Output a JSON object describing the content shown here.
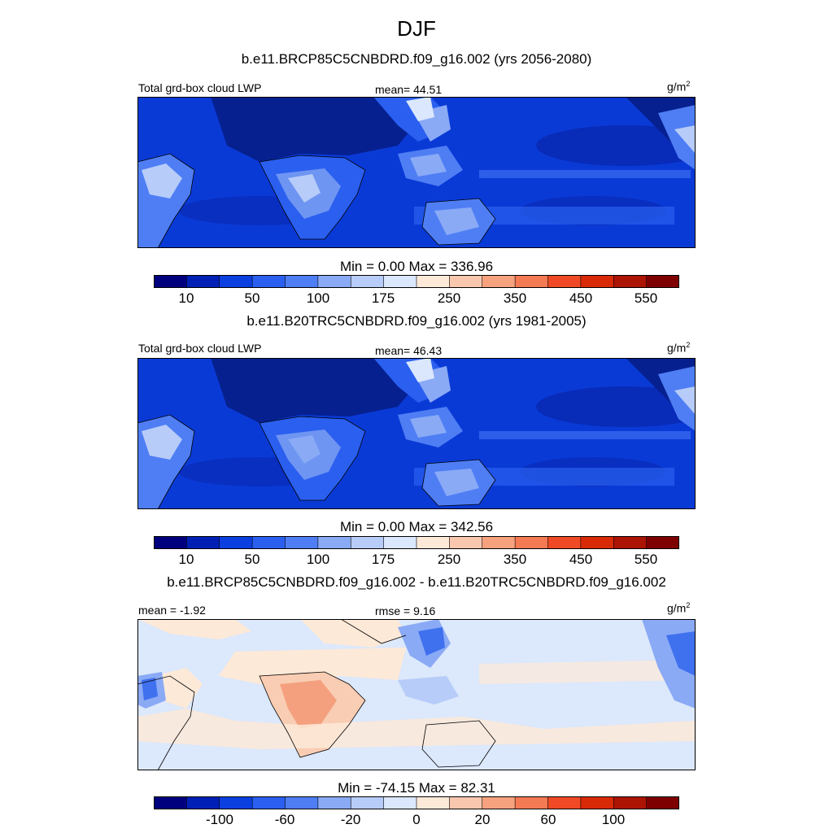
{
  "figure": {
    "title": "DJF",
    "panels": [
      {
        "run_title": "b.e11.BRCP85C5CNBDRD.f09_g16.002 (yrs 2056-2080)",
        "left_label": "Total grd-box cloud LWP",
        "center_label": "mean=  44.51",
        "units_base": "g/m",
        "units_exp": "2",
        "colorbar_title": "Min =   0.00 Max = 336.96",
        "colorbar_ticks": [
          "10",
          "50",
          "100",
          "175",
          "250",
          "350",
          "450",
          "550"
        ]
      },
      {
        "run_title": "b.e11.B20TRC5CNBDRD.f09_g16.002 (yrs 1981-2005)",
        "left_label": "Total grd-box cloud LWP",
        "center_label": "mean=  46.43",
        "units_base": "g/m",
        "units_exp": "2",
        "colorbar_title": "Min =   0.00 Max = 342.56",
        "colorbar_ticks": [
          "10",
          "50",
          "100",
          "175",
          "250",
          "350",
          "450",
          "550"
        ]
      },
      {
        "run_title": "b.e11.BRCP85C5CNBDRD.f09_g16.002 - b.e11.B20TRC5CNBDRD.f09_g16.002",
        "left_label": "mean =  -1.92",
        "center_label": "rmse =   9.16",
        "units_base": "g/m",
        "units_exp": "2",
        "colorbar_title": "Min = -74.15 Max =  82.31",
        "colorbar_ticks": [
          "-100",
          "-60",
          "-20",
          "0",
          "20",
          "60",
          "100"
        ]
      }
    ]
  },
  "colorbar_colors": [
    "#00007f",
    "#0020b5",
    "#0b3fe0",
    "#2a5ff0",
    "#4f7ef4",
    "#8aaaf6",
    "#b7ccf9",
    "#dbe7fd",
    "#fde9d8",
    "#f9c7ae",
    "#f7a27e",
    "#f47a54",
    "#ef4a25",
    "#d92a08",
    "#ac1404",
    "#7f0000"
  ],
  "map_colors": {
    "ocean_low": "#0a3ad6",
    "ocean_mid": "#2a5ff0",
    "desert": "#082aa8",
    "land_mid": "#6f95f2",
    "land_high": "#b7ccf9",
    "diff_bg": "#dce8fb",
    "diff_pos": "#f9cdb3",
    "diff_pos_strong": "#f4a07e",
    "diff_neg": "#8aaaf6",
    "diff_neg_strong": "#3f70ee"
  }
}
